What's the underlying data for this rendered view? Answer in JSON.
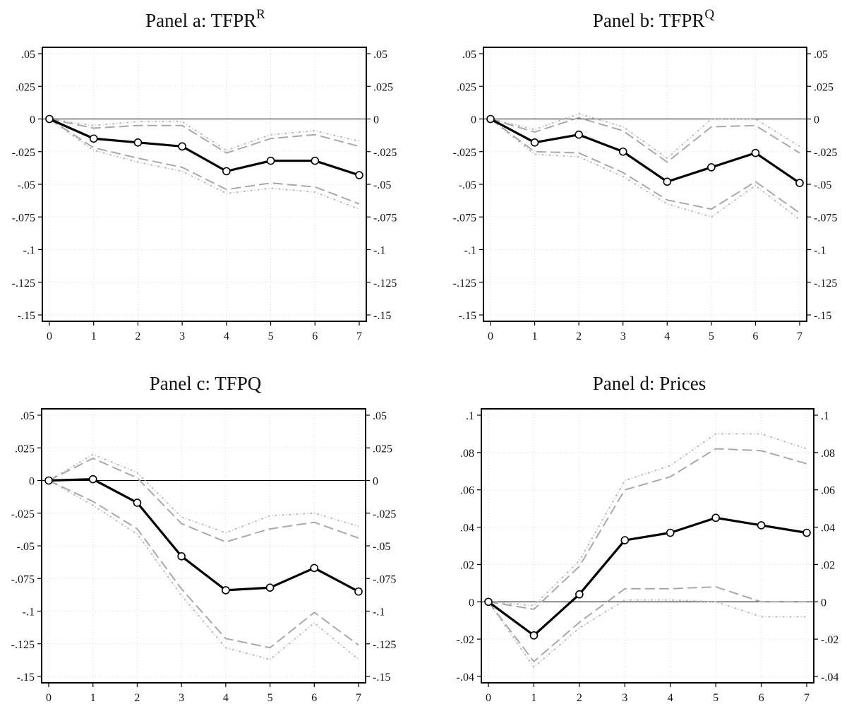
{
  "chart_data": [
    {
      "type": "line",
      "title": "Panel a: TFPR",
      "title_superscript": "R",
      "x": [
        0,
        1,
        2,
        3,
        4,
        5,
        6,
        7
      ],
      "ylim": [
        -0.15,
        0.05
      ],
      "yticks": [
        0.05,
        0.025,
        0,
        -0.025,
        -0.05,
        -0.075,
        -0.1,
        -0.125,
        -0.15
      ],
      "ytick_labels": [
        ".05",
        ".025",
        "0",
        "-.025",
        "-.05",
        "-.075",
        "-.1",
        "-.125",
        "-.15"
      ],
      "xtick_labels": [
        "0",
        "1",
        "2",
        "3",
        "4",
        "5",
        "6",
        "7"
      ],
      "grid": true,
      "series": [
        {
          "role": "estimate",
          "values": [
            0,
            -0.015,
            -0.018,
            -0.021,
            -0.04,
            -0.032,
            -0.032,
            -0.043
          ]
        },
        {
          "role": "ci90_upper",
          "values": [
            0,
            -0.007,
            -0.005,
            -0.005,
            -0.026,
            -0.015,
            -0.012,
            -0.021
          ]
        },
        {
          "role": "ci90_lower",
          "values": [
            0,
            -0.022,
            -0.03,
            -0.037,
            -0.054,
            -0.049,
            -0.052,
            -0.065
          ]
        },
        {
          "role": "ci95_upper",
          "values": [
            0,
            -0.005,
            -0.002,
            -0.002,
            -0.024,
            -0.012,
            -0.009,
            -0.017
          ]
        },
        {
          "role": "ci95_lower",
          "values": [
            0,
            -0.024,
            -0.033,
            -0.04,
            -0.057,
            -0.053,
            -0.056,
            -0.069
          ]
        }
      ]
    },
    {
      "type": "line",
      "title": "Panel b: TFPR",
      "title_superscript": "Q",
      "x": [
        0,
        1,
        2,
        3,
        4,
        5,
        6,
        7
      ],
      "ylim": [
        -0.15,
        0.05
      ],
      "yticks": [
        0.05,
        0.025,
        0,
        -0.025,
        -0.05,
        -0.075,
        -0.1,
        -0.125,
        -0.15
      ],
      "ytick_labels": [
        ".05",
        ".025",
        "0",
        "-.025",
        "-.05",
        "-.075",
        "-.1",
        "-.125",
        "-.15"
      ],
      "xtick_labels": [
        "0",
        "1",
        "2",
        "3",
        "4",
        "5",
        "6",
        "7"
      ],
      "grid": true,
      "series": [
        {
          "role": "estimate",
          "values": [
            0,
            -0.018,
            -0.012,
            -0.025,
            -0.048,
            -0.037,
            -0.026,
            -0.049
          ]
        },
        {
          "role": "ci90_upper",
          "values": [
            0,
            -0.01,
            0.001,
            -0.009,
            -0.033,
            -0.006,
            -0.005,
            -0.026
          ]
        },
        {
          "role": "ci90_lower",
          "values": [
            0,
            -0.025,
            -0.026,
            -0.041,
            -0.062,
            -0.069,
            -0.048,
            -0.072
          ]
        },
        {
          "role": "ci95_upper",
          "values": [
            0,
            -0.008,
            0.004,
            -0.006,
            -0.03,
            0,
            0,
            -0.021
          ]
        },
        {
          "role": "ci95_lower",
          "values": [
            0,
            -0.027,
            -0.029,
            -0.044,
            -0.065,
            -0.075,
            -0.051,
            -0.077
          ]
        }
      ]
    },
    {
      "type": "line",
      "title": "Panel c: TFPQ",
      "title_superscript": "",
      "x": [
        0,
        1,
        2,
        3,
        4,
        5,
        6,
        7
      ],
      "ylim": [
        -0.15,
        0.05
      ],
      "yticks": [
        0.05,
        0.025,
        0,
        -0.025,
        -0.05,
        -0.075,
        -0.1,
        -0.125,
        -0.15
      ],
      "ytick_labels": [
        ".05",
        ".025",
        "0",
        "-.025",
        "-.05",
        "-.075",
        "-.1",
        "-.125",
        "-.15"
      ],
      "xtick_labels": [
        "0",
        "1",
        "2",
        "3",
        "4",
        "5",
        "6",
        "7"
      ],
      "grid": true,
      "series": [
        {
          "role": "estimate",
          "values": [
            0,
            0.001,
            -0.017,
            -0.058,
            -0.084,
            -0.082,
            -0.067,
            -0.085
          ]
        },
        {
          "role": "ci90_upper",
          "values": [
            0,
            0.017,
            0.002,
            -0.033,
            -0.047,
            -0.037,
            -0.032,
            -0.044
          ]
        },
        {
          "role": "ci90_lower",
          "values": [
            0,
            -0.016,
            -0.037,
            -0.083,
            -0.121,
            -0.128,
            -0.101,
            -0.126
          ]
        },
        {
          "role": "ci95_upper",
          "values": [
            0,
            0.02,
            0.006,
            -0.028,
            -0.04,
            -0.027,
            -0.025,
            -0.035
          ]
        },
        {
          "role": "ci95_lower",
          "values": [
            0,
            -0.019,
            -0.041,
            -0.088,
            -0.128,
            -0.137,
            -0.109,
            -0.137
          ]
        }
      ]
    },
    {
      "type": "line",
      "title": "Panel d: Prices",
      "title_superscript": "",
      "x": [
        0,
        1,
        2,
        3,
        4,
        5,
        6,
        7
      ],
      "ylim": [
        -0.04,
        0.1
      ],
      "yticks": [
        0.1,
        0.08,
        0.06,
        0.04,
        0.02,
        0,
        -0.02,
        -0.04
      ],
      "ytick_labels": [
        ".1",
        ".08",
        ".06",
        ".04",
        ".02",
        "0",
        "-.02",
        "-.04"
      ],
      "xtick_labels": [
        "0",
        "1",
        "2",
        "3",
        "4",
        "5",
        "6",
        "7"
      ],
      "grid": true,
      "series": [
        {
          "role": "estimate",
          "values": [
            0,
            -0.018,
            0.004,
            0.033,
            0.037,
            0.045,
            0.041,
            0.037
          ]
        },
        {
          "role": "ci90_upper",
          "values": [
            0,
            -0.004,
            0.019,
            0.06,
            0.067,
            0.082,
            0.081,
            0.074
          ]
        },
        {
          "role": "ci90_lower",
          "values": [
            0,
            -0.032,
            -0.011,
            0.007,
            0.007,
            0.008,
            0,
            0
          ]
        },
        {
          "role": "ci95_upper",
          "values": [
            0,
            -0.002,
            0.022,
            0.065,
            0.073,
            0.09,
            0.09,
            0.082
          ]
        },
        {
          "role": "ci95_lower",
          "values": [
            0,
            -0.035,
            -0.014,
            0.001,
            0.001,
            0,
            -0.008,
            -0.008
          ]
        }
      ]
    }
  ]
}
